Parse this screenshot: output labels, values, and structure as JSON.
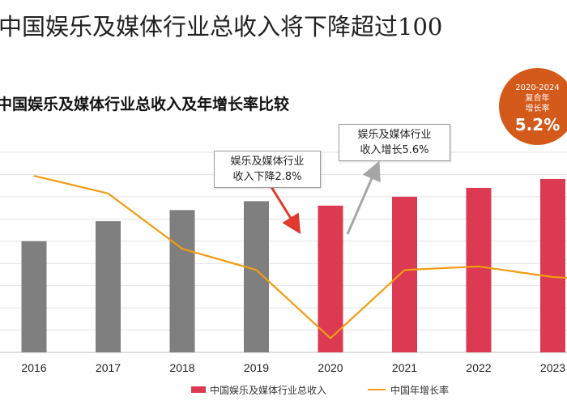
{
  "title": "中国娱乐及媒体行业总收入将下降超过100",
  "chart_data": {
    "type": "bar",
    "title": "中国娱乐及媒体行业总收入及年增长率比较",
    "categories": [
      "2016",
      "2017",
      "2018",
      "2019",
      "2020",
      "2021",
      "2022",
      "2023"
    ],
    "series": [
      {
        "name": "中国娱乐及媒体行业总收入",
        "type": "bar",
        "values": [
          50,
          59,
          64,
          68,
          66,
          70,
          74,
          78
        ],
        "colors": [
          "#7f7f7f",
          "#7f7f7f",
          "#7f7f7f",
          "#7f7f7f",
          "#dc3a52",
          "#dc3a52",
          "#dc3a52",
          "#dc3a52"
        ]
      },
      {
        "name": "中国年增长率",
        "type": "line",
        "values": [
          11.0,
          9.5,
          4.8,
          3.0,
          -2.8,
          3.0,
          3.3,
          2.4
        ],
        "color": "#f39c12"
      }
    ],
    "ylim_bar": [
      0,
      90
    ],
    "ylim_line": [
      -4,
      13
    ],
    "grid": true,
    "legend": "bottom",
    "annotations": {
      "decline": {
        "line1": "娱乐及媒体行业",
        "line2": "收入下降2.8%",
        "arrow_color": "#e03a2e"
      },
      "growth": {
        "line1": "娱乐及媒体行业",
        "line2": "收入增长5.6%",
        "arrow_color": "#a6a6a6"
      },
      "cagr": {
        "period": "2020-2024",
        "line1": "复合年",
        "line2": "增长率",
        "value": "5.2%"
      }
    }
  }
}
